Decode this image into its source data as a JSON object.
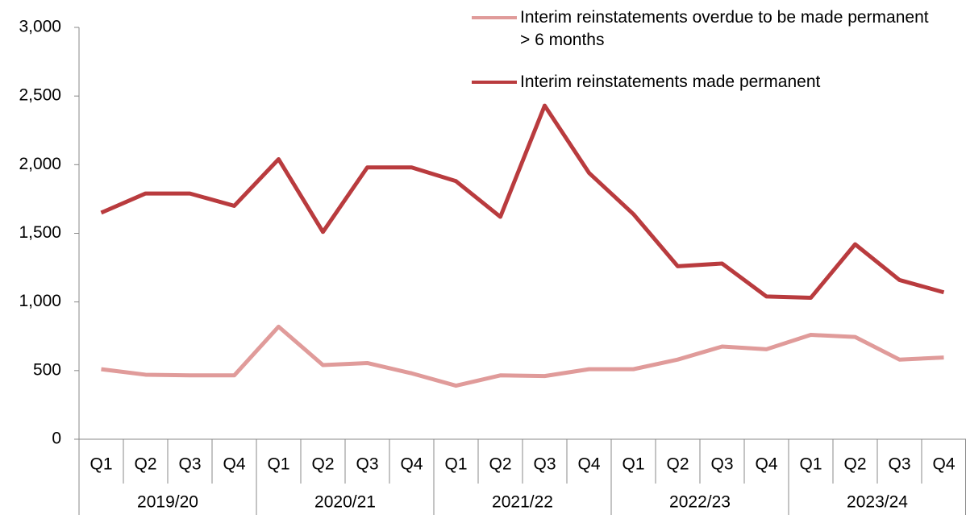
{
  "chart_data": {
    "type": "line",
    "categories": [
      "Q1",
      "Q2",
      "Q3",
      "Q4",
      "Q1",
      "Q2",
      "Q3",
      "Q4",
      "Q1",
      "Q2",
      "Q3",
      "Q4",
      "Q1",
      "Q2",
      "Q3",
      "Q4",
      "Q1",
      "Q2",
      "Q3",
      "Q4"
    ],
    "category_groups": [
      "2019/20",
      "2020/21",
      "2021/22",
      "2022/23",
      "2023/24"
    ],
    "series": [
      {
        "name": "Interim reinstatements overdue to be made permanent > 6 months",
        "color": "#e09b9a",
        "values": [
          510,
          470,
          465,
          465,
          820,
          540,
          555,
          480,
          390,
          465,
          460,
          510,
          510,
          580,
          675,
          655,
          760,
          745,
          580,
          595
        ]
      },
      {
        "name": "Interim reinstatements made permanent",
        "color": "#b93b3e",
        "values": [
          1650,
          1790,
          1790,
          1700,
          2040,
          1510,
          1980,
          1980,
          1880,
          1620,
          2430,
          1940,
          1640,
          1260,
          1280,
          1040,
          1030,
          1420,
          1160,
          1070
        ]
      }
    ],
    "ylim": [
      0,
      3000
    ],
    "yticks": [
      0,
      500,
      {
        "value": 1000,
        "label": "1,000"
      },
      {
        "value": 1500,
        "label": "1,500"
      },
      {
        "value": 2000,
        "label": "2,000"
      },
      {
        "value": 2500,
        "label": "2,500"
      },
      {
        "value": 3000,
        "label": "3,000"
      }
    ],
    "grid": false
  }
}
